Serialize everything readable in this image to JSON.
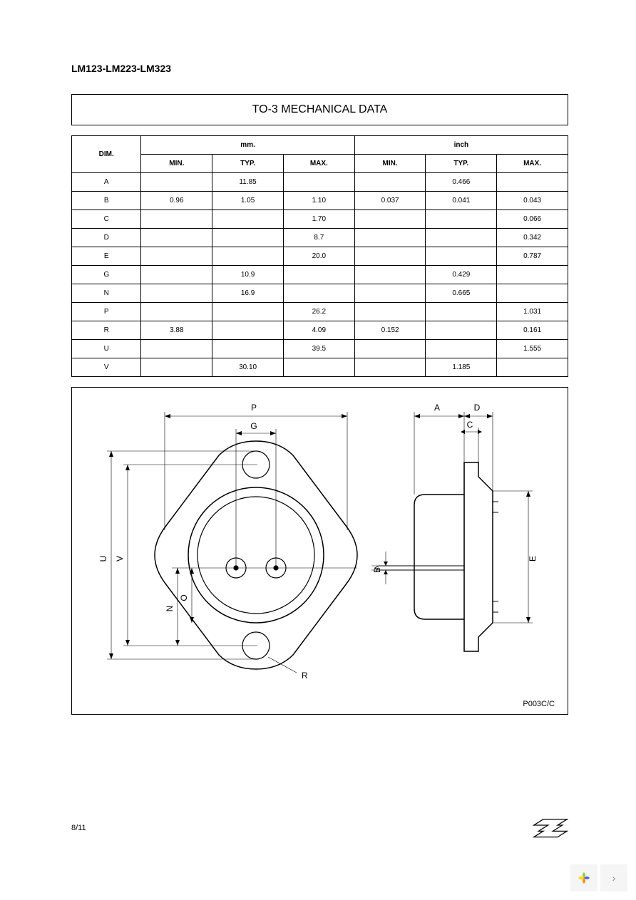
{
  "header": {
    "part_number": "LM123-LM223-LM323"
  },
  "title_box": {
    "text": "TO-3 MECHANICAL DATA"
  },
  "table": {
    "dim_header": "DIM.",
    "unit_mm": "mm.",
    "unit_inch": "inch",
    "col_min": "MIN.",
    "col_typ": "TYP.",
    "col_max": "MAX.",
    "rows": [
      {
        "dim": "A",
        "mm_min": "",
        "mm_typ": "11.85",
        "mm_max": "",
        "in_min": "",
        "in_typ": "0.466",
        "in_max": ""
      },
      {
        "dim": "B",
        "mm_min": "0.96",
        "mm_typ": "1.05",
        "mm_max": "1.10",
        "in_min": "0.037",
        "in_typ": "0.041",
        "in_max": "0.043"
      },
      {
        "dim": "C",
        "mm_min": "",
        "mm_typ": "",
        "mm_max": "1.70",
        "in_min": "",
        "in_typ": "",
        "in_max": "0.066"
      },
      {
        "dim": "D",
        "mm_min": "",
        "mm_typ": "",
        "mm_max": "8.7",
        "in_min": "",
        "in_typ": "",
        "in_max": "0.342"
      },
      {
        "dim": "E",
        "mm_min": "",
        "mm_typ": "",
        "mm_max": "20.0",
        "in_min": "",
        "in_typ": "",
        "in_max": "0.787"
      },
      {
        "dim": "G",
        "mm_min": "",
        "mm_typ": "10.9",
        "mm_max": "",
        "in_min": "",
        "in_typ": "0.429",
        "in_max": ""
      },
      {
        "dim": "N",
        "mm_min": "",
        "mm_typ": "16.9",
        "mm_max": "",
        "in_min": "",
        "in_typ": "0.665",
        "in_max": ""
      },
      {
        "dim": "P",
        "mm_min": "",
        "mm_typ": "",
        "mm_max": "26.2",
        "in_min": "",
        "in_typ": "",
        "in_max": "1.031"
      },
      {
        "dim": "R",
        "mm_min": "3.88",
        "mm_typ": "",
        "mm_max": "4.09",
        "in_min": "0.152",
        "in_typ": "",
        "in_max": "0.161"
      },
      {
        "dim": "U",
        "mm_min": "",
        "mm_typ": "",
        "mm_max": "39.5",
        "in_min": "",
        "in_typ": "",
        "in_max": "1.555"
      },
      {
        "dim": "V",
        "mm_min": "",
        "mm_typ": "30.10",
        "mm_max": "",
        "in_min": "",
        "in_typ": "1.185",
        "in_max": ""
      }
    ]
  },
  "diagram": {
    "code": "P003C/C",
    "labels": {
      "P": "P",
      "G": "G",
      "U": "U",
      "V": "V",
      "N": "N",
      "O": "O",
      "R": "R",
      "A": "A",
      "D": "D",
      "C": "C",
      "B": "B",
      "E": "E"
    },
    "styling": {
      "stroke_color": "#000000",
      "stroke_width": 1.2,
      "thin_stroke": 0.6,
      "background": "#ffffff",
      "font_size": 12
    }
  },
  "footer": {
    "page": "8/11"
  },
  "logo": {
    "name": "ST"
  },
  "nav_icons": {
    "petal_colors": [
      "#9acd32",
      "#4169e1",
      "#ff8c00",
      "#ffd700"
    ]
  }
}
